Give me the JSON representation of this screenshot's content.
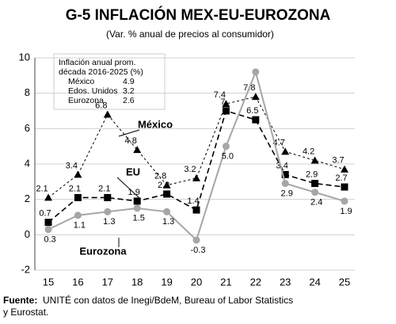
{
  "chart_data": {
    "type": "line",
    "title": "G-5 INFLACIÓN MEX-EU-EUROZONA",
    "subtitle": "(Var. % anual de precios al consumidor)",
    "categories": [
      "15",
      "16",
      "17",
      "18",
      "19",
      "20",
      "21",
      "22",
      "23",
      "24",
      "25"
    ],
    "series": [
      {
        "name": "México",
        "color": "#000000",
        "marker": "triangle",
        "values": [
          2.1,
          3.4,
          6.8,
          4.8,
          2.8,
          3.2,
          7.4,
          7.8,
          4.7,
          4.2,
          3.7
        ]
      },
      {
        "name": "EU",
        "color": "#000000",
        "marker": "square",
        "values": [
          0.7,
          2.1,
          2.1,
          1.9,
          2.3,
          1.4,
          7.0,
          6.5,
          3.4,
          2.9,
          2.7
        ]
      },
      {
        "name": "Eurozona",
        "color": "#a6a6a6",
        "marker": "circle",
        "values": [
          0.3,
          1.1,
          1.3,
          1.5,
          1.3,
          -0.3,
          5.0,
          9.2,
          2.9,
          2.4,
          1.9
        ],
        "value_labels": [
          "0.3",
          "1.1",
          "1.3",
          "1.5",
          "1.3",
          "-0.3",
          "5.0",
          null,
          "2.9",
          "2.4",
          "1.9"
        ]
      }
    ],
    "ylim": [
      -2,
      10
    ],
    "yticks": [
      -2,
      0,
      2,
      4,
      6,
      8,
      10
    ],
    "grid": true,
    "inset": {
      "title": "Inflación anual prom. década 2016-2025 (%)",
      "rows": [
        [
          "México",
          4.9
        ],
        [
          "Edos. Unidos",
          3.2
        ],
        [
          "Eurozona",
          2.6
        ]
      ]
    },
    "source_label": "Fuente:",
    "source": "UNITÉ con datos de Inegi/BdeM, Bureau of Labor Statistics y Eurostat."
  }
}
